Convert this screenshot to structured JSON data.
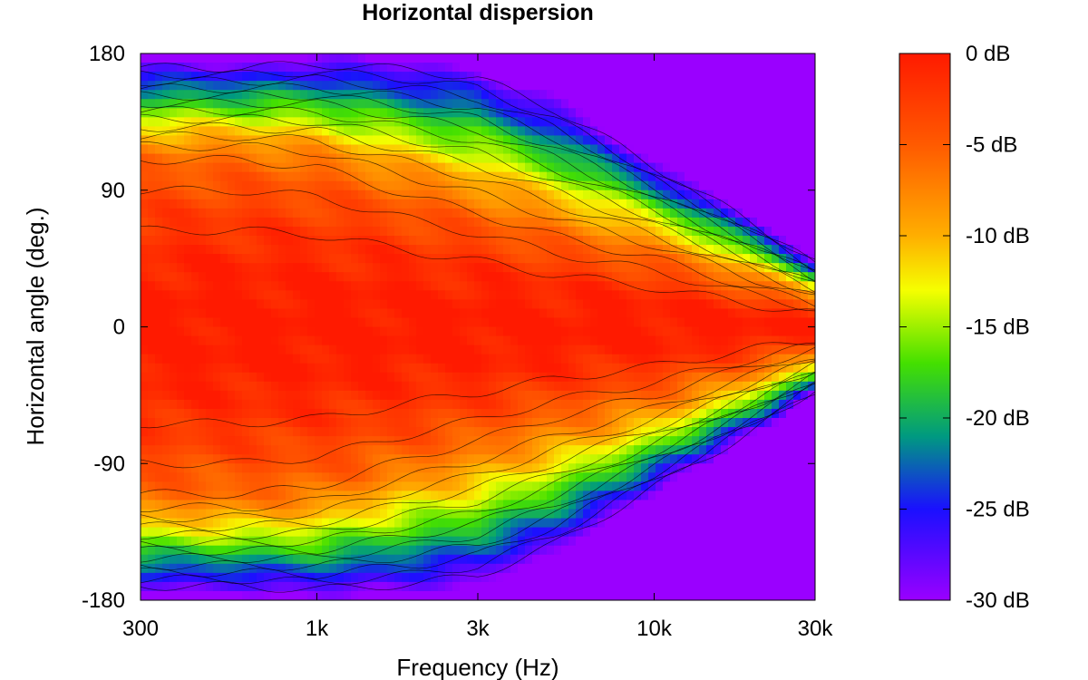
{
  "chart_data": {
    "type": "heatmap",
    "title": "Horizontal dispersion",
    "xlabel": "Frequency (Hz)",
    "ylabel": "Horizontal angle (deg.)",
    "x_scale": "log",
    "xlim": [
      300,
      30000
    ],
    "ylim": [
      -180,
      180
    ],
    "x_ticks": [
      {
        "value": 300,
        "label": "300"
      },
      {
        "value": 1000,
        "label": "1k"
      },
      {
        "value": 3000,
        "label": "3k"
      },
      {
        "value": 10000,
        "label": "10k"
      },
      {
        "value": 30000,
        "label": "30k"
      }
    ],
    "y_ticks": [
      {
        "value": 180,
        "label": "180"
      },
      {
        "value": 90,
        "label": "90"
      },
      {
        "value": 0,
        "label": "0"
      },
      {
        "value": -90,
        "label": "-90"
      },
      {
        "value": -180,
        "label": "-180"
      }
    ],
    "colorbar": {
      "range_db": [
        -30,
        0
      ],
      "ticks": [
        {
          "value": 0,
          "label": "0 dB"
        },
        {
          "value": -5,
          "label": "-5 dB"
        },
        {
          "value": -10,
          "label": "-10 dB"
        },
        {
          "value": -15,
          "label": "-15 dB"
        },
        {
          "value": -20,
          "label": "-20 dB"
        },
        {
          "value": -25,
          "label": "-25 dB"
        },
        {
          "value": -30,
          "label": "-30 dB"
        }
      ],
      "colors": [
        {
          "value": 0,
          "color": "#ff1a00"
        },
        {
          "value": -5,
          "color": "#ff5a00"
        },
        {
          "value": -10,
          "color": "#ffae00"
        },
        {
          "value": -13,
          "color": "#f5ff00"
        },
        {
          "value": -17,
          "color": "#44e000"
        },
        {
          "value": -21,
          "color": "#009a80"
        },
        {
          "value": -25,
          "color": "#1a10ff"
        },
        {
          "value": -30,
          "color": "#9a00ff"
        }
      ]
    },
    "series": [
      {
        "frequency_hz": 300,
        "beamwidth_6db_deg": 110,
        "beamwidth_30db_deg": 175
      },
      {
        "frequency_hz": 600,
        "beamwidth_6db_deg": 110,
        "beamwidth_30db_deg": 175
      },
      {
        "frequency_hz": 1000,
        "beamwidth_6db_deg": 105,
        "beamwidth_30db_deg": 178
      },
      {
        "frequency_hz": 2000,
        "beamwidth_6db_deg": 85,
        "beamwidth_30db_deg": 175
      },
      {
        "frequency_hz": 3000,
        "beamwidth_6db_deg": 75,
        "beamwidth_30db_deg": 170
      },
      {
        "frequency_hz": 5000,
        "beamwidth_6db_deg": 60,
        "beamwidth_30db_deg": 150
      },
      {
        "frequency_hz": 10000,
        "beamwidth_6db_deg": 45,
        "beamwidth_30db_deg": 110
      },
      {
        "frequency_hz": 20000,
        "beamwidth_6db_deg": 25,
        "beamwidth_30db_deg": 70
      },
      {
        "frequency_hz": 30000,
        "beamwidth_6db_deg": 15,
        "beamwidth_30db_deg": 45
      }
    ]
  }
}
